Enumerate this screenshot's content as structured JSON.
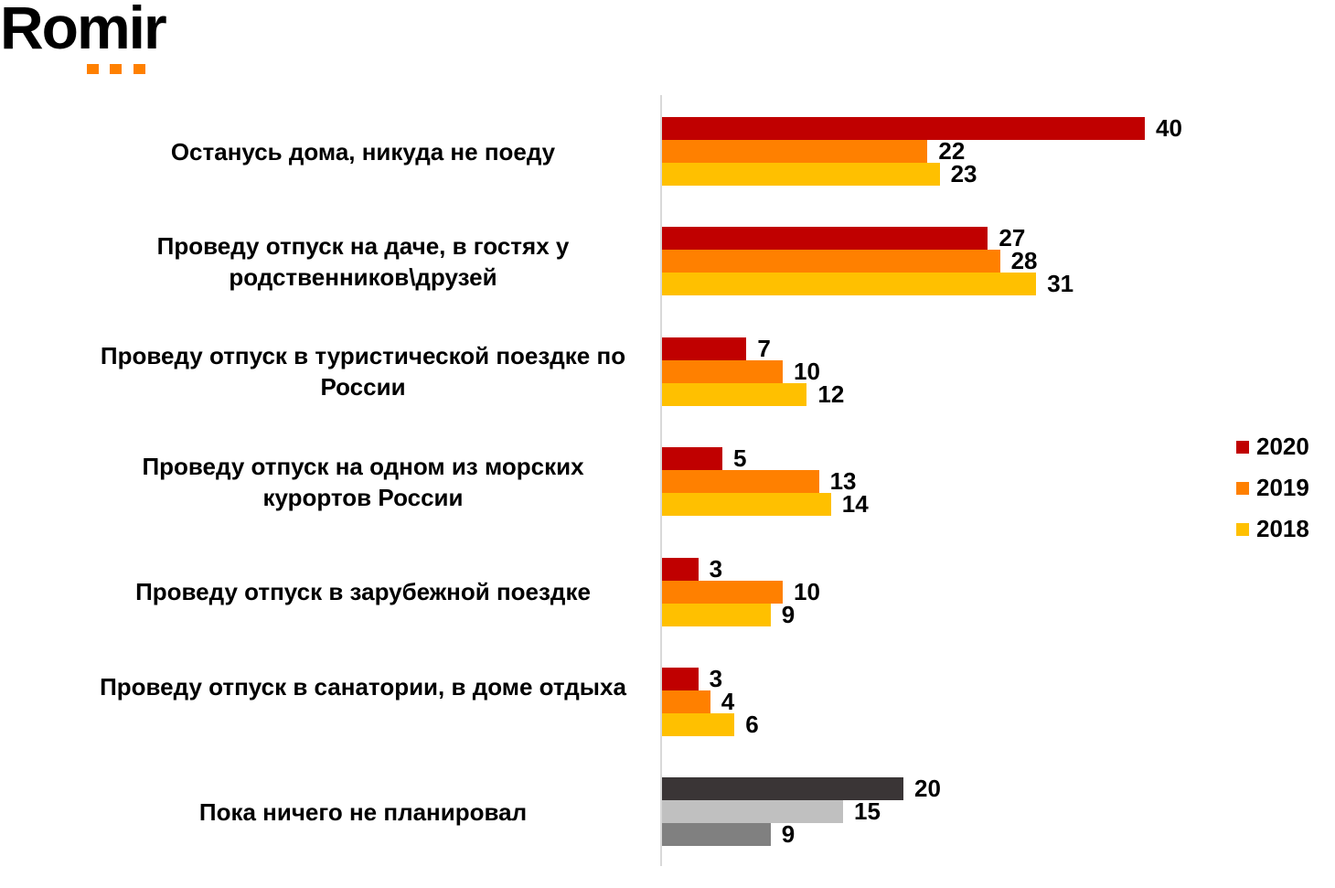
{
  "logo": {
    "text": "Romir",
    "accent": "#ff8000"
  },
  "chart_data": {
    "type": "bar",
    "orientation": "horizontal",
    "categories": [
      "Останусь дома, никуда не поеду",
      "Проведу отпуск на даче, в гостях у родственников\\друзей",
      "Проведу отпуск в туристической поездке по России",
      "Проведу отпуск на одном из морских курортов России",
      "Проведу отпуск в зарубежной поездке",
      "Проведу отпуск в санатории, в доме отдыха",
      "Пока ничего не планировал"
    ],
    "series": [
      {
        "name": "2020",
        "color": "#c00000",
        "values": [
          40,
          27,
          7,
          5,
          3,
          3,
          20
        ]
      },
      {
        "name": "2019",
        "color": "#ff8000",
        "values": [
          22,
          28,
          10,
          13,
          10,
          4,
          15
        ]
      },
      {
        "name": "2018",
        "color": "#ffc000",
        "values": [
          23,
          31,
          12,
          14,
          9,
          6,
          9
        ]
      }
    ],
    "last_category_colors": [
      "#3a3536",
      "#c0c0c0",
      "#808080"
    ],
    "xlim": [
      0,
      40
    ],
    "grid": false,
    "legend_position": "right",
    "data_labels": true
  }
}
